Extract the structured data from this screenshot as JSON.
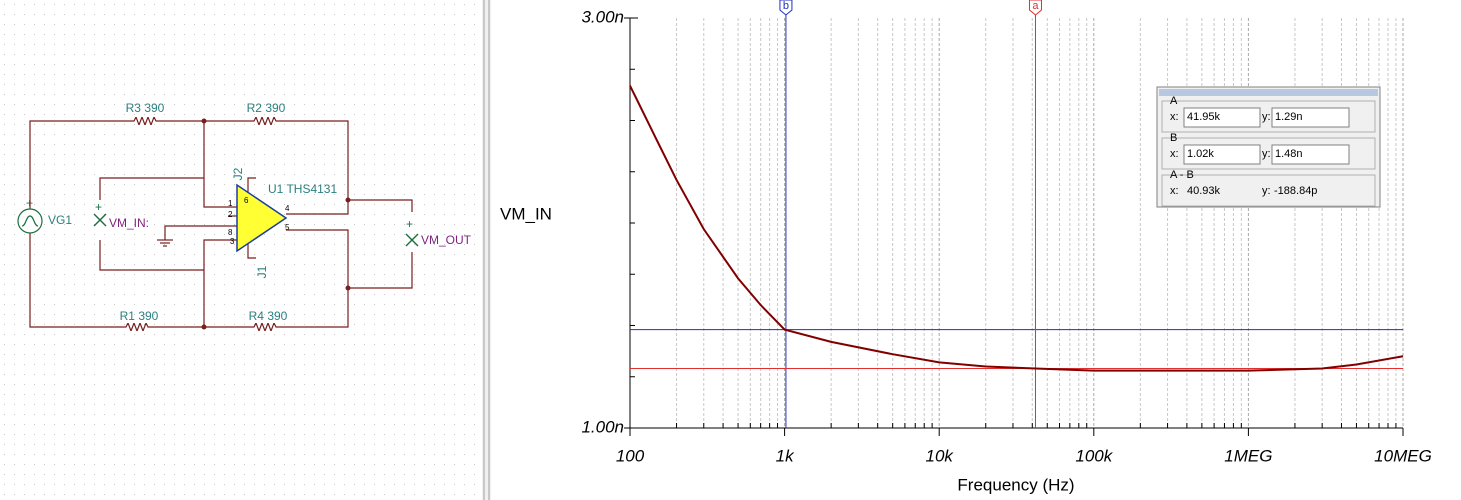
{
  "schematic": {
    "r3": "R3 390",
    "r2": "R2 390",
    "r1": "R1 390",
    "r4": "R4 390",
    "vg1": "VG1",
    "vm_in": "VM_IN:",
    "vm_out": "VM_OUT",
    "u1": "U1 THS4131",
    "j2": "J2",
    "j1": "J1",
    "pins": [
      "1",
      "2",
      "8",
      "3",
      "4",
      "5",
      "6"
    ]
  },
  "chart_data": {
    "type": "line",
    "x_label": "Frequency (Hz)",
    "y_label": "VM_IN",
    "x": [
      100,
      150,
      200,
      300,
      500,
      700,
      1000,
      2000,
      5000,
      10000,
      20000,
      41950,
      100000,
      300000,
      1000000,
      3000000,
      5000000,
      10000000
    ],
    "series": [
      {
        "name": "VM_IN",
        "color": "#800000",
        "values": [
          2.67,
          2.4,
          2.21,
          1.97,
          1.73,
          1.6,
          1.48,
          1.42,
          1.36,
          1.32,
          1.3,
          1.29,
          1.28,
          1.28,
          1.28,
          1.29,
          1.31,
          1.35
        ]
      }
    ],
    "xlim": [
      100,
      10000000
    ],
    "xscale": "log",
    "xticks": [
      100,
      {
        "value": 1000,
        "label": "1k"
      },
      {
        "value": 10000,
        "label": "10k"
      },
      {
        "value": 100000,
        "label": "100k"
      },
      {
        "value": 1000000,
        "label": "1MEG"
      },
      {
        "value": 10000000,
        "label": "10MEG"
      }
    ],
    "ylim": [
      1,
      3
    ],
    "yticks": [
      {
        "value": 3,
        "label": "3.00n"
      },
      {
        "value": 1,
        "label": "1.00n"
      }
    ],
    "grid": true,
    "cursors": [
      {
        "name": "b",
        "color": "#2030c0",
        "x": 1020,
        "y": 1.48
      },
      {
        "name": "a",
        "color": "#e03030",
        "x": 41950,
        "y": 1.29
      }
    ],
    "readout": {
      "x_prefix": "x:",
      "y_prefix": "y:",
      "rows": [
        {
          "name": "A",
          "x": "41.95k",
          "y": "1.29n"
        },
        {
          "name": "B",
          "x": "1.02k",
          "y": "1.48n"
        },
        {
          "name": "A - B",
          "x": "40.93k",
          "y": "-188.84p"
        }
      ]
    }
  }
}
